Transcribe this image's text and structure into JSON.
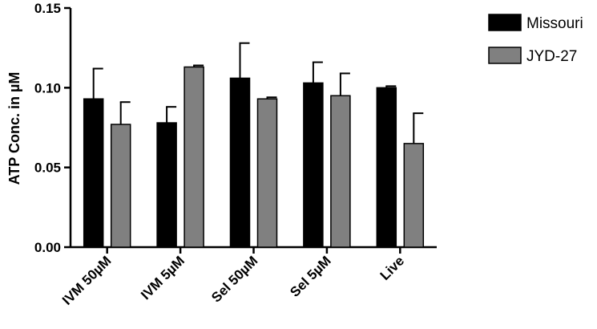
{
  "chart_data": {
    "type": "bar",
    "title": "",
    "xlabel": "",
    "ylabel": "ATP Conc. in µM",
    "ylim": [
      0,
      0.15
    ],
    "yticks": [
      "0.00",
      "0.05",
      "0.10",
      "0.15"
    ],
    "categories": [
      "IVM 50µM",
      "IVM 5µM",
      "Sel 50µM",
      "Sel 5µM",
      "Live"
    ],
    "series": [
      {
        "name": "Missouri",
        "color": "#000000",
        "values": [
          0.093,
          0.078,
          0.106,
          0.103,
          0.1
        ],
        "errors": [
          0.019,
          0.01,
          0.022,
          0.013,
          0.001
        ]
      },
      {
        "name": "JYD-27",
        "color": "#808080",
        "values": [
          0.077,
          0.113,
          0.093,
          0.095,
          0.065
        ],
        "errors": [
          0.014,
          0.001,
          0.001,
          0.014,
          0.019
        ]
      }
    ],
    "legend_position": "top-right",
    "grid": false
  }
}
